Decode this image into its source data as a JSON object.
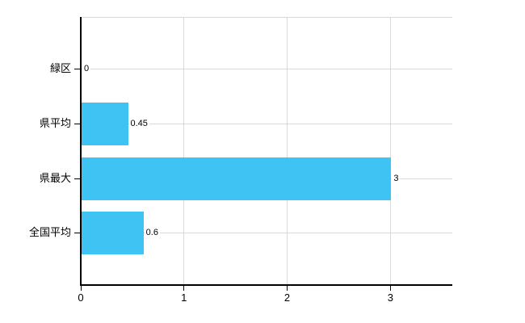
{
  "chart_data": {
    "type": "bar",
    "orientation": "horizontal",
    "categories": [
      "緑区",
      "県平均",
      "県最大",
      "全国平均"
    ],
    "values": [
      0,
      0.45,
      3,
      0.6
    ],
    "value_labels": [
      "0",
      "0.45",
      "3",
      "0.6"
    ],
    "x_tick_labels": [
      "0",
      "1",
      "2",
      "3"
    ],
    "x_ticks": [
      0,
      1,
      2,
      3
    ],
    "xlim": [
      0,
      3.6
    ],
    "xlabel": "",
    "ylabel": "",
    "legend": null,
    "grid": "both",
    "colors": {
      "bar": "#3ec3f2",
      "grid": "#d9d9d9",
      "axis": "#000000",
      "text": "#000000",
      "background": "#ffffff"
    }
  }
}
